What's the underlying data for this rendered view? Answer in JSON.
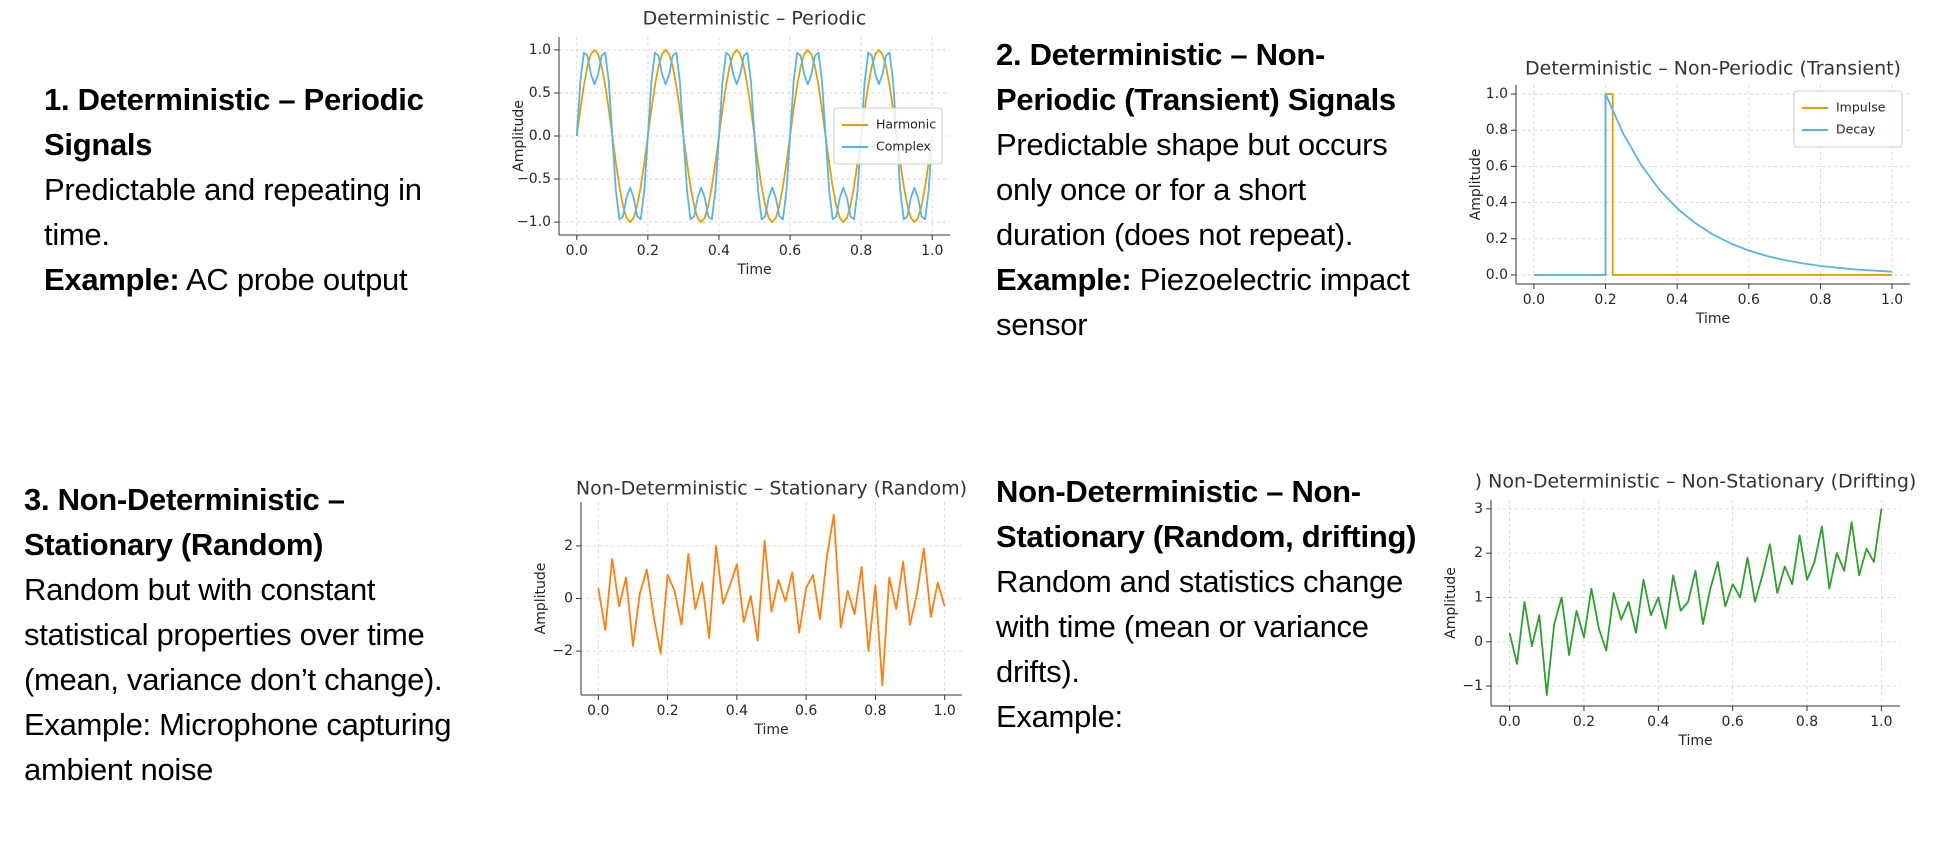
{
  "text_blocks": [
    {
      "heading": [
        "1. Deterministic – Periodic",
        "Signals"
      ],
      "body": [
        "Predictable and repeating in",
        "time."
      ],
      "example_label": "Example:",
      "example": [
        "AC probe output"
      ]
    },
    {
      "heading": [
        "2. Deterministic – Non-",
        "Periodic (Transient) Signals"
      ],
      "body": [
        "Predictable shape but occurs",
        "only once or for a short",
        "duration (does not repeat)."
      ],
      "example_label": "Example:",
      "example": [
        "Piezoelectric impact",
        "sensor"
      ]
    },
    {
      "heading": [
        "3. Non-Deterministic –",
        "Stationary (Random)"
      ],
      "body": [
        "Random but with constant",
        "statistical properties over time",
        "(mean, variance don’t change).",
        "Example: Microphone capturing",
        "ambient noise"
      ]
    },
    {
      "heading": [
        "Non-Deterministic – Non-",
        "Stationary (Random, drifting)"
      ],
      "body": [
        "Random and statistics change",
        "with time (mean or variance",
        "drifts).",
        "Example:"
      ]
    }
  ],
  "chart_data": [
    {
      "type": "line",
      "title": "Deterministic – Periodic",
      "x_label": "Time",
      "y_label": "Amplitude",
      "grid": true,
      "legend": "center right",
      "xlim": [
        -0.05,
        1.05
      ],
      "ylim": [
        -1.15,
        1.15
      ],
      "xticks": [
        {
          "value": 0,
          "label": "0.0"
        },
        0.2,
        0.4,
        0.6,
        0.8,
        {
          "value": 1,
          "label": "1.0"
        }
      ],
      "yticks": [
        {
          "value": -1,
          "label": "−1.0"
        },
        {
          "value": -0.5,
          "label": "−0.5"
        },
        {
          "value": 0,
          "label": "0.0"
        },
        0.5,
        {
          "value": 1,
          "label": "1.0"
        }
      ],
      "x": [
        0,
        0.01,
        0.02,
        0.03,
        0.04,
        0.05,
        0.06,
        0.07,
        0.08,
        0.09,
        0.1,
        0.11,
        0.12,
        0.13,
        0.14,
        0.15,
        0.16,
        0.17,
        0.18,
        0.19,
        0.2,
        0.21,
        0.22,
        0.23,
        0.24,
        0.25,
        0.26,
        0.27,
        0.28,
        0.29,
        0.3,
        0.31,
        0.32,
        0.33,
        0.34,
        0.35,
        0.36,
        0.37,
        0.38,
        0.39,
        0.4,
        0.41,
        0.42,
        0.43,
        0.44,
        0.45,
        0.46,
        0.47,
        0.48,
        0.49,
        0.5,
        0.51,
        0.52,
        0.53,
        0.54,
        0.55,
        0.56,
        0.57,
        0.58,
        0.59,
        0.6,
        0.61,
        0.62,
        0.63,
        0.64,
        0.65,
        0.66,
        0.67,
        0.68,
        0.69,
        0.7,
        0.71,
        0.72,
        0.73,
        0.74,
        0.75,
        0.76,
        0.77,
        0.78,
        0.79,
        0.8,
        0.81,
        0.82,
        0.83,
        0.84,
        0.85,
        0.86,
        0.87,
        0.88,
        0.89,
        0.9,
        0.91,
        0.92,
        0.93,
        0.94,
        0.95,
        0.96,
        0.97,
        0.98,
        0.99,
        1
      ],
      "series": [
        {
          "name": "Harmonic",
          "color": "#e69f00",
          "values": [
            0,
            0.309,
            0.588,
            0.809,
            0.951,
            1,
            0.951,
            0.809,
            0.588,
            0.309,
            0,
            -0.309,
            -0.588,
            -0.809,
            -0.951,
            -1,
            -0.951,
            -0.809,
            -0.588,
            -0.309,
            0,
            0.309,
            0.588,
            0.809,
            0.951,
            1,
            0.951,
            0.809,
            0.588,
            0.309,
            0,
            -0.309,
            -0.588,
            -0.809,
            -0.951,
            -1,
            -0.951,
            -0.809,
            -0.588,
            -0.309,
            0,
            0.309,
            0.588,
            0.809,
            0.951,
            1,
            0.951,
            0.809,
            0.588,
            0.309,
            0,
            -0.309,
            -0.588,
            -0.809,
            -0.951,
            -1,
            -0.951,
            -0.809,
            -0.588,
            -0.309,
            0,
            0.309,
            0.588,
            0.809,
            0.951,
            1,
            0.951,
            0.809,
            0.588,
            0.309,
            0,
            -0.309,
            -0.588,
            -0.809,
            -0.951,
            -1,
            -0.951,
            -0.809,
            -0.588,
            -0.309,
            0,
            0.309,
            0.588,
            0.809,
            0.951,
            1,
            0.951,
            0.809,
            0.588,
            0.309,
            0,
            -0.309,
            -0.588,
            -0.809,
            -0.951,
            -1,
            -0.951,
            -0.809,
            -0.588,
            -0.309,
            0
          ]
        },
        {
          "name": "Complex",
          "color": "#56b4e9",
          "values": [
            0,
            0.633,
            0.968,
            0.933,
            0.716,
            0.6,
            0.716,
            0.933,
            0.968,
            0.633,
            0,
            -0.633,
            -0.968,
            -0.933,
            -0.716,
            -0.6,
            -0.716,
            -0.933,
            -0.968,
            -0.633,
            0,
            0.633,
            0.968,
            0.933,
            0.716,
            0.6,
            0.716,
            0.933,
            0.968,
            0.633,
            0,
            -0.633,
            -0.968,
            -0.933,
            -0.716,
            -0.6,
            -0.716,
            -0.933,
            -0.968,
            -0.633,
            0,
            0.633,
            0.968,
            0.933,
            0.716,
            0.6,
            0.716,
            0.933,
            0.968,
            0.633,
            0,
            -0.633,
            -0.968,
            -0.933,
            -0.716,
            -0.6,
            -0.716,
            -0.933,
            -0.968,
            -0.633,
            0,
            0.633,
            0.968,
            0.933,
            0.716,
            0.6,
            0.716,
            0.933,
            0.968,
            0.633,
            0,
            -0.633,
            -0.968,
            -0.933,
            -0.716,
            -0.6,
            -0.716,
            -0.933,
            -0.968,
            -0.633,
            0,
            0.633,
            0.968,
            0.933,
            0.716,
            0.6,
            0.716,
            0.933,
            0.968,
            0.633,
            0,
            -0.633,
            -0.968,
            -0.933,
            -0.716,
            -0.6,
            -0.716,
            -0.933,
            -0.968,
            -0.633,
            0
          ]
        }
      ]
    },
    {
      "type": "line",
      "title": "Deterministic – Non-Periodic (Transient)",
      "x_label": "Time",
      "y_label": "Amplitude",
      "grid": true,
      "legend": "upper right",
      "xlim": [
        -0.05,
        1.05
      ],
      "ylim": [
        -0.05,
        1.05
      ],
      "xticks": [
        {
          "value": 0,
          "label": "0.0"
        },
        0.2,
        0.4,
        0.6,
        0.8,
        {
          "value": 1,
          "label": "1.0"
        }
      ],
      "yticks": [
        {
          "value": 0,
          "label": "0.0"
        },
        0.2,
        0.4,
        0.6,
        0.8,
        {
          "value": 1,
          "label": "1.0"
        }
      ],
      "series": [
        {
          "name": "Impulse",
          "color": "#e69f00",
          "x": [
            0,
            0.2,
            0.2,
            0.22,
            0.22,
            1
          ],
          "values": [
            0,
            0,
            1,
            1,
            0,
            0
          ]
        },
        {
          "name": "Decay",
          "color": "#56b4e9",
          "x": [
            0,
            0.2,
            0.2,
            0.25,
            0.3,
            0.35,
            0.4,
            0.45,
            0.5,
            0.55,
            0.6,
            0.65,
            0.7,
            0.75,
            0.8,
            0.85,
            0.9,
            0.95,
            1
          ],
          "values": [
            0,
            0,
            1,
            0.779,
            0.607,
            0.472,
            0.368,
            0.287,
            0.223,
            0.174,
            0.135,
            0.105,
            0.082,
            0.064,
            0.05,
            0.039,
            0.03,
            0.024,
            0.018
          ]
        }
      ]
    },
    {
      "type": "line",
      "title": "Non-Deterministic – Stationary (Random)",
      "x_label": "Time",
      "y_label": "Amplitude",
      "grid": true,
      "xlim": [
        -0.05,
        1.05
      ],
      "ylim": [
        -3.67,
        3.67
      ],
      "xticks": [
        {
          "value": 0,
          "label": "0.0"
        },
        0.2,
        0.4,
        0.6,
        0.8,
        {
          "value": 1,
          "label": "1.0"
        }
      ],
      "yticks": [
        {
          "value": -2,
          "label": "−2"
        },
        0,
        2
      ],
      "x": [
        0,
        0.02,
        0.04,
        0.06,
        0.08,
        0.1,
        0.12,
        0.14,
        0.16,
        0.18,
        0.2,
        0.22,
        0.24,
        0.26,
        0.28,
        0.3,
        0.32,
        0.34,
        0.36,
        0.38,
        0.4,
        0.42,
        0.44,
        0.46,
        0.48,
        0.5,
        0.52,
        0.54,
        0.56,
        0.58,
        0.6,
        0.62,
        0.64,
        0.66,
        0.68,
        0.7,
        0.72,
        0.74,
        0.76,
        0.78,
        0.8,
        0.82,
        0.84,
        0.86,
        0.88,
        0.9,
        0.92,
        0.94,
        0.96,
        0.98,
        1
      ],
      "series": [
        {
          "color": "#ff7f0e",
          "values": [
            0.4,
            -1.2,
            1.5,
            -0.3,
            0.8,
            -1.8,
            0.2,
            1.1,
            -0.7,
            -2.1,
            0.9,
            0.3,
            -1.0,
            1.7,
            -0.4,
            0.6,
            -1.5,
            2.0,
            -0.2,
            0.5,
            1.3,
            -0.9,
            0.1,
            -1.6,
            2.2,
            -0.5,
            0.7,
            -0.1,
            1.0,
            -1.3,
            0.4,
            0.9,
            -0.8,
            1.6,
            3.2,
            -1.1,
            0.3,
            -0.6,
            1.2,
            -2.0,
            0.5,
            -3.3,
            0.8,
            -0.4,
            1.4,
            -1.0,
            0.2,
            1.9,
            -0.7,
            0.6,
            -0.3
          ]
        }
      ]
    },
    {
      "type": "line",
      "title": ") Non-Deterministic – Non-Stationary (Drifting)",
      "x_label": "Time",
      "y_label": "Amplitude",
      "grid": true,
      "xlim": [
        -0.05,
        1.05
      ],
      "ylim": [
        -1.45,
        3.2
      ],
      "xticks": [
        {
          "value": 0,
          "label": "0.0"
        },
        0.2,
        0.4,
        0.6,
        0.8,
        {
          "value": 1,
          "label": "1.0"
        }
      ],
      "yticks": [
        {
          "value": -1,
          "label": "−1"
        },
        0,
        1,
        2,
        3
      ],
      "x": [
        0,
        0.02,
        0.04,
        0.06,
        0.08,
        0.1,
        0.12,
        0.14,
        0.16,
        0.18,
        0.2,
        0.22,
        0.24,
        0.26,
        0.28,
        0.3,
        0.32,
        0.34,
        0.36,
        0.38,
        0.4,
        0.42,
        0.44,
        0.46,
        0.48,
        0.5,
        0.52,
        0.54,
        0.56,
        0.58,
        0.6,
        0.62,
        0.64,
        0.66,
        0.68,
        0.7,
        0.72,
        0.74,
        0.76,
        0.78,
        0.8,
        0.82,
        0.84,
        0.86,
        0.88,
        0.9,
        0.92,
        0.94,
        0.96,
        0.98,
        1
      ],
      "series": [
        {
          "color": "#2ca02c",
          "values": [
            0.2,
            -0.5,
            0.9,
            -0.1,
            0.6,
            -1.2,
            0.4,
            1.0,
            -0.3,
            0.7,
            0.1,
            1.2,
            0.3,
            -0.2,
            1.1,
            0.5,
            0.9,
            0.2,
            1.4,
            0.6,
            1.0,
            0.3,
            1.5,
            0.7,
            0.9,
            1.6,
            0.4,
            1.2,
            1.8,
            0.8,
            1.3,
            1.0,
            1.9,
            0.9,
            1.5,
            2.2,
            1.1,
            1.7,
            1.3,
            2.4,
            1.4,
            1.8,
            2.6,
            1.2,
            2.0,
            1.6,
            2.7,
            1.5,
            2.1,
            1.8,
            3.0
          ]
        }
      ]
    }
  ]
}
